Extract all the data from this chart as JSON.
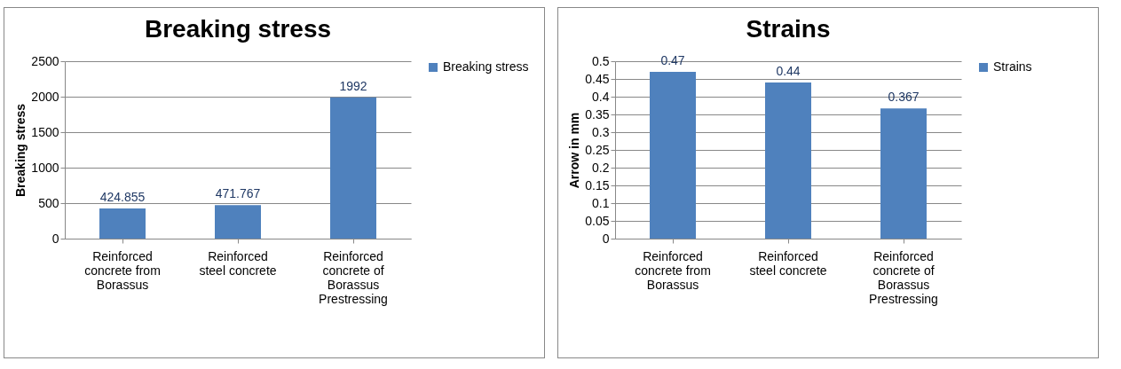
{
  "chart_data": [
    {
      "type": "bar",
      "title": "Breaking stress",
      "ylabel": "Breaking stress",
      "categories": [
        "Reinforced concrete from Borassus",
        "Reinforced steel concrete",
        "Reinforced concrete of Borassus Prestressing"
      ],
      "series": [
        {
          "name": "Breaking stress",
          "color": "#4f81bd",
          "values": [
            424.855,
            471.767,
            1992
          ]
        }
      ],
      "ylim": [
        0,
        2500
      ],
      "yticks": [
        0,
        500,
        1000,
        1500,
        2000,
        2500
      ],
      "grid": "y",
      "legend": "right",
      "data_labels": true
    },
    {
      "type": "bar",
      "title": "Strains",
      "ylabel": "Arrow in mm",
      "categories": [
        "Reinforced concrete from Borassus",
        "Reinforced steel concrete",
        "Reinforced concrete of Borassus Prestressing"
      ],
      "series": [
        {
          "name": "Strains",
          "color": "#4f81bd",
          "values": [
            0.47,
            0.44,
            0.367
          ]
        }
      ],
      "ylim": [
        0,
        0.5
      ],
      "yticks": [
        0,
        0.05,
        0.1,
        0.15,
        0.2,
        0.25,
        0.3,
        0.35,
        0.4,
        0.45,
        0.5
      ],
      "grid": "y",
      "legend": "right",
      "data_labels": true
    }
  ]
}
